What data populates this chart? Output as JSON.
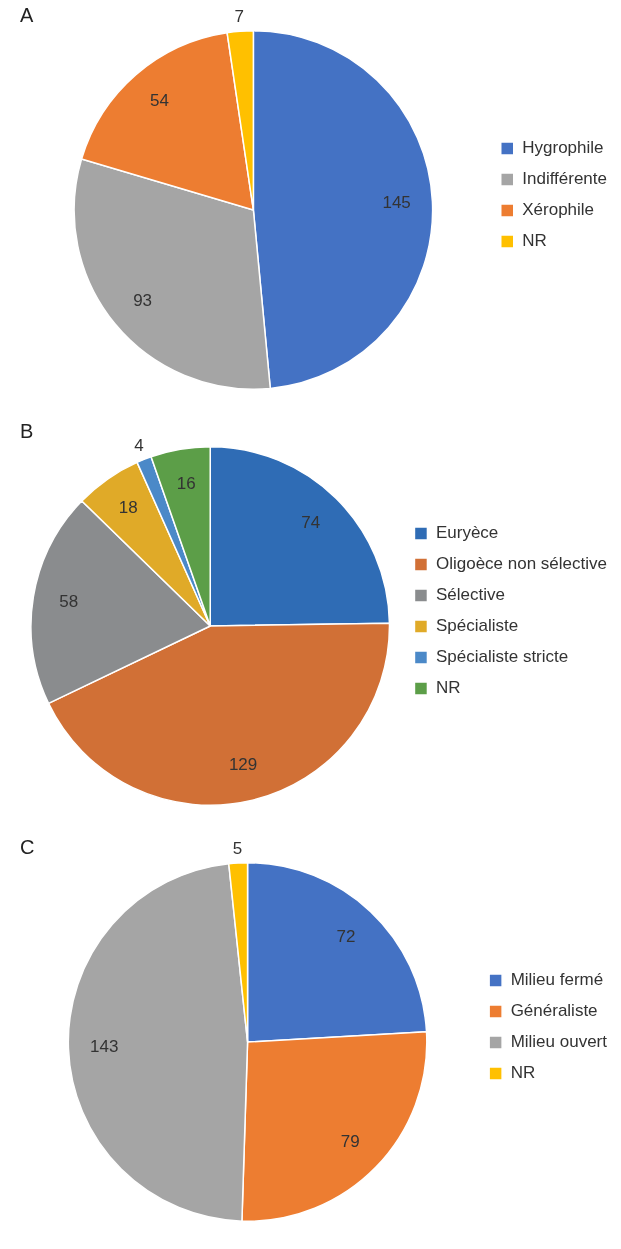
{
  "chart_data": [
    {
      "type": "pie",
      "title": "A",
      "categories": [
        "Hygrophile",
        "Indifférente",
        "Xérophile",
        "NR"
      ],
      "values": [
        145,
        93,
        54,
        7
      ],
      "colors": [
        "#4472c4",
        "#a5a5a5",
        "#ed7d31",
        "#ffc000"
      ],
      "data_labels": true,
      "legend": "right"
    },
    {
      "type": "pie",
      "title": "B",
      "categories": [
        "Euryèce",
        "Oligoèce non sélective",
        "Sélective",
        "Spécialiste",
        "Spécialiste stricte",
        "NR"
      ],
      "values": [
        74,
        129,
        58,
        18,
        4,
        16
      ],
      "colors": [
        "#2f6cb5",
        "#d17036",
        "#8a8c8e",
        "#e0aa28",
        "#4b89c8",
        "#5c9e48"
      ],
      "data_labels": true,
      "legend": "right"
    },
    {
      "type": "pie",
      "title": "C",
      "categories": [
        "Milieu fermé",
        "Généraliste",
        "Milieu ouvert",
        "NR"
      ],
      "values": [
        72,
        79,
        143,
        5
      ],
      "colors": [
        "#4472c4",
        "#ed7d31",
        "#a5a5a5",
        "#ffc000"
      ],
      "data_labels": true,
      "legend": "right"
    }
  ]
}
